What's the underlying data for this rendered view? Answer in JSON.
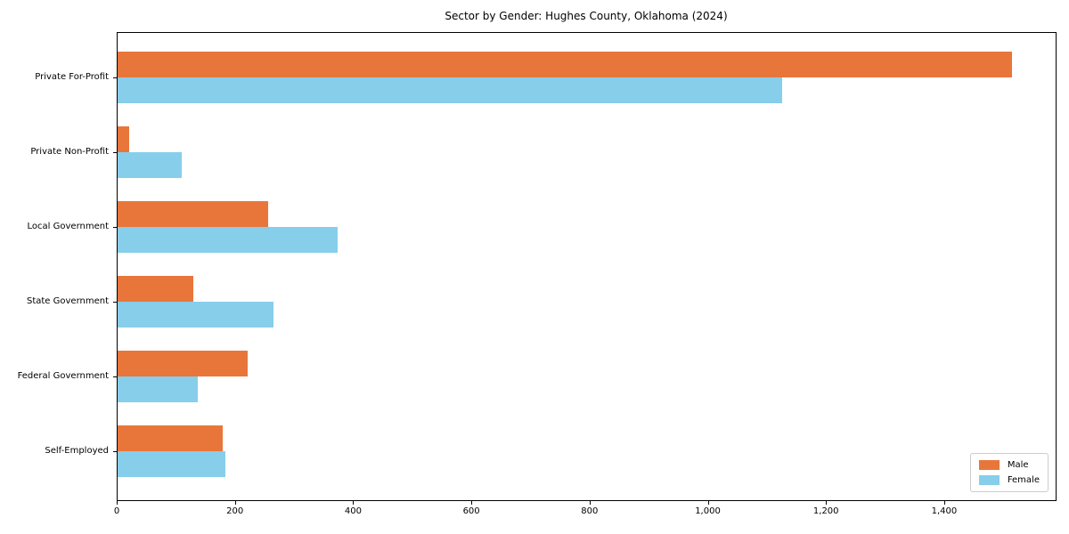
{
  "chart_data": {
    "type": "bar",
    "orientation": "horizontal",
    "title": "Sector by Gender: Hughes County, Oklahoma (2024)",
    "categories": [
      "Private For-Profit",
      "Private Non-Profit",
      "Local Government",
      "State Government",
      "Federal Government",
      "Self-Employed"
    ],
    "series": [
      {
        "name": "Male",
        "color": "#E8763B",
        "values": [
          1513,
          19,
          255,
          128,
          220,
          178
        ]
      },
      {
        "name": "Female",
        "color": "#87CEEB",
        "values": [
          1124,
          108,
          373,
          264,
          135,
          183
        ]
      }
    ],
    "xlabel": "",
    "ylabel": "",
    "xlim": [
      0,
      1590
    ],
    "xticks": [
      0,
      200,
      400,
      600,
      800,
      1000,
      1200,
      1400
    ],
    "xtick_labels": [
      "0",
      "200",
      "400",
      "600",
      "800",
      "1,000",
      "1,200",
      "1,400"
    ],
    "grid": false,
    "legend_position": "lower right",
    "axis_color": "#000000",
    "background_color": "#ffffff"
  }
}
